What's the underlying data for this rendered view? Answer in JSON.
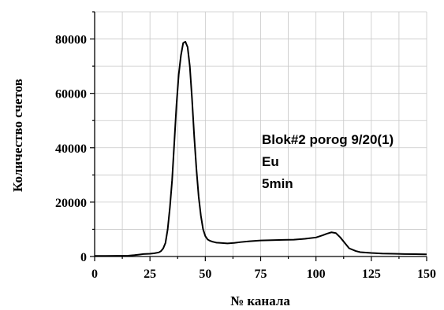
{
  "chart_data": {
    "type": "line",
    "title": "",
    "xlabel": "№ канала",
    "ylabel": "Количество счетов",
    "xlim": [
      0,
      150
    ],
    "ylim": [
      0,
      90000
    ],
    "xticks": [
      0,
      25,
      50,
      75,
      100,
      125,
      150
    ],
    "xtick_labels": [
      "0",
      "25",
      "50",
      "75",
      "100",
      "125",
      "150"
    ],
    "yticks": [
      0,
      20000,
      40000,
      60000,
      80000
    ],
    "ytick_labels": [
      "0",
      "20000",
      "40000",
      "60000",
      "80000"
    ],
    "grid": true,
    "legend": "none",
    "annotations": [
      "Blok#2 porog 9/20(1)",
      "Eu",
      "5min"
    ],
    "series": [
      {
        "x": [
          0,
          5,
          10,
          15,
          18,
          20,
          22,
          25,
          27,
          29,
          30,
          31,
          32,
          33,
          34,
          35,
          36,
          37,
          38,
          39,
          40,
          41,
          42,
          43,
          44,
          45,
          46,
          47,
          48,
          49,
          50,
          51,
          52,
          53,
          54,
          55,
          57,
          60,
          63,
          66,
          70,
          75,
          80,
          85,
          90,
          95,
          100,
          103,
          105,
          107,
          109,
          111,
          113,
          115,
          118,
          120,
          125,
          130,
          135,
          140,
          145,
          150
        ],
        "y": [
          200,
          200,
          250,
          300,
          500,
          700,
          900,
          1000,
          1200,
          1500,
          2000,
          3000,
          5000,
          10000,
          18000,
          28000,
          42000,
          56000,
          67000,
          74000,
          78500,
          79000,
          77000,
          70000,
          58000,
          44000,
          32000,
          22000,
          15000,
          10000,
          7500,
          6300,
          5800,
          5500,
          5300,
          5100,
          5000,
          4800,
          5000,
          5300,
          5600,
          5900,
          6000,
          6100,
          6200,
          6500,
          7000,
          7800,
          8400,
          8900,
          8600,
          7000,
          5000,
          3000,
          2000,
          1600,
          1300,
          1100,
          1000,
          900,
          850,
          800
        ]
      }
    ]
  }
}
